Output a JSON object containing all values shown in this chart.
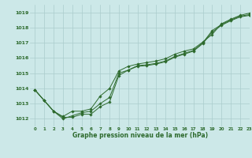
{
  "title": "Graphe pression niveau de la mer (hPa)",
  "bg_color": "#cce8e8",
  "grid_color": "#aacccc",
  "line_color": "#2d6a2d",
  "marker_color": "#2d6a2d",
  "xlim": [
    -0.5,
    23
  ],
  "ylim": [
    1011.5,
    1019.5
  ],
  "xticks": [
    0,
    1,
    2,
    3,
    4,
    5,
    6,
    7,
    8,
    9,
    10,
    11,
    12,
    13,
    14,
    15,
    16,
    17,
    18,
    19,
    20,
    21,
    22,
    23
  ],
  "yticks": [
    1012,
    1013,
    1014,
    1015,
    1016,
    1017,
    1018,
    1019
  ],
  "series": [
    [
      1013.9,
      1013.2,
      1012.5,
      1012.0,
      1012.2,
      1012.4,
      1012.5,
      1013.0,
      1013.4,
      1015.0,
      1015.2,
      1015.5,
      1015.55,
      1015.65,
      1015.8,
      1016.1,
      1016.3,
      1016.5,
      1017.0,
      1017.8,
      1018.2,
      1018.5,
      1018.75,
      1018.85
    ],
    [
      1013.9,
      1013.2,
      1012.5,
      1012.15,
      1012.5,
      1012.5,
      1012.65,
      1013.5,
      1014.0,
      1015.15,
      1015.45,
      1015.6,
      1015.7,
      1015.8,
      1015.95,
      1016.25,
      1016.45,
      1016.6,
      1017.05,
      1017.55,
      1018.25,
      1018.55,
      1018.8,
      1018.95
    ],
    [
      1013.9,
      1013.2,
      1012.5,
      1012.1,
      1012.1,
      1012.3,
      1012.3,
      1012.8,
      1013.1,
      1014.85,
      1015.2,
      1015.45,
      1015.5,
      1015.6,
      1015.75,
      1016.05,
      1016.25,
      1016.45,
      1016.95,
      1017.7,
      1018.15,
      1018.45,
      1018.7,
      1018.8
    ]
  ]
}
